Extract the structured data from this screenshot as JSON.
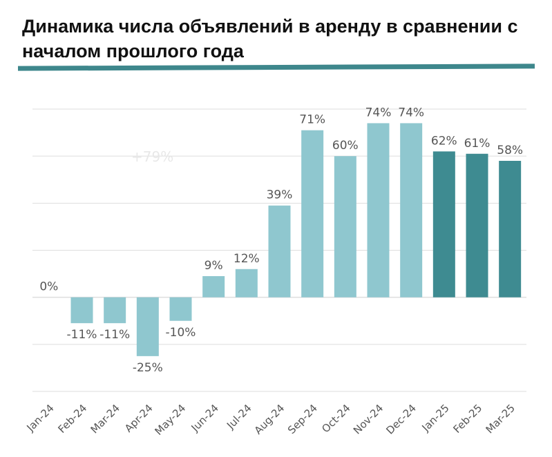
{
  "title": "Динамика числа объявлений в аренду в сравнении с началом прошлого года",
  "colors": {
    "bar_2024": "#8fc7cf",
    "bar_2025": "#3e8b91",
    "rule": "#3e878c",
    "grid": "#dddddd"
  },
  "watermark": "+79%",
  "chart_data": {
    "type": "bar",
    "title": "Динамика числа объявлений в аренду в сравнении с началом прошлого года",
    "categories": [
      "Jan-24",
      "Feb-24",
      "Mar-24",
      "Apr-24",
      "May-24",
      "Jun-24",
      "Jul-24",
      "Aug-24",
      "Sep-24",
      "Oct-24",
      "Nov-24",
      "Dec-24",
      "Jan-25",
      "Feb-25",
      "Mar-25"
    ],
    "values": [
      0,
      -11,
      -11,
      -25,
      -10,
      9,
      12,
      39,
      71,
      60,
      74,
      74,
      62,
      61,
      58
    ],
    "data_labels": [
      "0%",
      "-11%",
      "-11%",
      "-25%",
      "-10%",
      "9%",
      "12%",
      "39%",
      "71%",
      "60%",
      "74%",
      "74%",
      "62%",
      "61%",
      "58%"
    ],
    "ylim": [
      -40,
      80
    ],
    "grid": true,
    "legend": "none"
  }
}
